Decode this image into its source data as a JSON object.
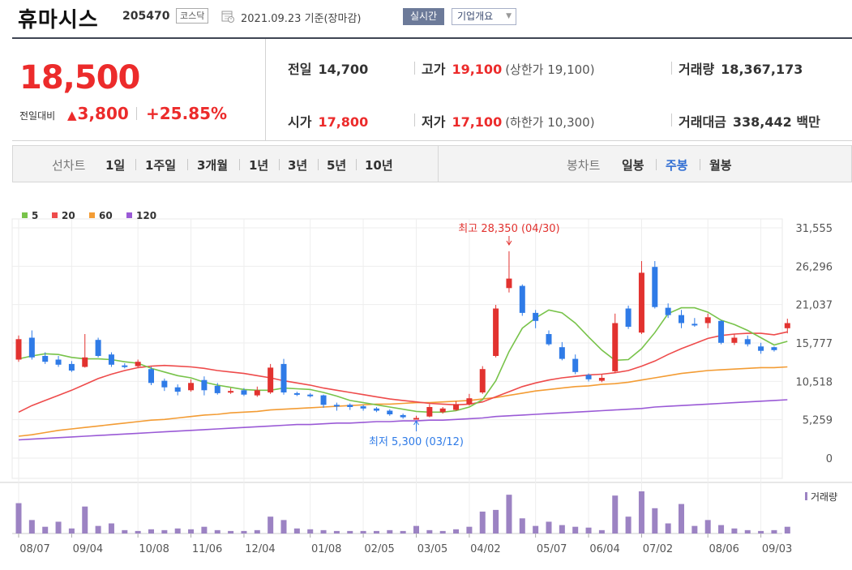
{
  "header": {
    "name": "휴마시스",
    "code": "205470",
    "market": "코스닥",
    "date": "2021.09.23 기준(장마감)",
    "realtime_label": "실시간",
    "overview_label": "기업개요"
  },
  "summary": {
    "price": "18,500",
    "change_label": "전일대비",
    "change_amount": "3,800",
    "change_rate": "+25.85%",
    "prev_close_label": "전일",
    "prev_close": "14,700",
    "open_label": "시가",
    "open": "17,800",
    "high_label": "고가",
    "high": "19,100",
    "upper_limit": "(상한가 19,100)",
    "low_label": "저가",
    "low": "17,100",
    "lower_limit": "(하한가 10,300)",
    "volume_label": "거래량",
    "volume": "18,367,173",
    "value_label": "거래대금",
    "value": "338,442",
    "value_unit": "백만"
  },
  "period_bar": {
    "line_label": "선차트",
    "line_periods": [
      "1일",
      "1주일",
      "3개월",
      "1년",
      "3년",
      "5년",
      "10년"
    ],
    "candle_label": "봉차트",
    "candle_periods": [
      "일봉",
      "주봉",
      "월봉"
    ],
    "active_candle": "주봉"
  },
  "colors": {
    "up": "#e2322f",
    "down": "#2f7be7",
    "ma5": "#78c34a",
    "ma20": "#ee4b4b",
    "ma60": "#f39c34",
    "ma120": "#9a5ad6",
    "volume": "#9c83c3"
  },
  "chart_data": {
    "type": "candlestick",
    "interval": "weekly",
    "legend": [
      "5",
      "20",
      "60",
      "120"
    ],
    "y_ticks": [
      "31,555",
      "26,296",
      "21,037",
      "15,777",
      "10,518",
      "5,259",
      "0"
    ],
    "x_labels": [
      "08/07",
      "09/04",
      "10/08",
      "11/06",
      "12/04",
      "01/08",
      "02/05",
      "03/05",
      "04/02",
      "05/07",
      "06/04",
      "07/02",
      "08/06",
      "09/03"
    ],
    "volume_label": "거래량",
    "annotation_high": "최고 28,350 (04/30)",
    "annotation_low": "최저 5,300 (03/12)",
    "ylim": [
      0,
      31555
    ],
    "candles": [
      [
        13500,
        16300,
        13200,
        16800
      ],
      [
        16500,
        13800,
        13500,
        17500
      ],
      [
        14000,
        13200,
        12900,
        14500
      ],
      [
        13500,
        12800,
        12500,
        14000
      ],
      [
        12900,
        12000,
        11800,
        13300
      ],
      [
        12500,
        13800,
        12400,
        17000
      ],
      [
        16200,
        14000,
        13800,
        16500
      ],
      [
        14200,
        12800,
        12500,
        14500
      ],
      [
        12700,
        12500,
        12300,
        13000
      ],
      [
        12600,
        13200,
        12400,
        13500
      ],
      [
        12200,
        10300,
        10000,
        12500
      ],
      [
        10600,
        9700,
        9200,
        10900
      ],
      [
        9700,
        9100,
        8600,
        10100
      ],
      [
        9300,
        10300,
        9100,
        10800
      ],
      [
        10700,
        9300,
        8600,
        11200
      ],
      [
        9900,
        8900,
        8700,
        10300
      ],
      [
        9100,
        9200,
        8800,
        9600
      ],
      [
        9300,
        8700,
        8500,
        9600
      ],
      [
        8600,
        9300,
        8400,
        9800
      ],
      [
        9000,
        12400,
        8800,
        12900
      ],
      [
        12900,
        9000,
        8700,
        13600
      ],
      [
        8900,
        8700,
        8500,
        9100
      ],
      [
        8700,
        8500,
        8300,
        8900
      ],
      [
        8600,
        7300,
        6900,
        8700
      ],
      [
        7300,
        7100,
        6500,
        7600
      ],
      [
        7300,
        7000,
        6600,
        7500
      ],
      [
        7100,
        6800,
        6500,
        7300
      ],
      [
        6800,
        6500,
        6300,
        7000
      ],
      [
        6500,
        6000,
        5800,
        6700
      ],
      [
        5900,
        5600,
        5400,
        6100
      ],
      [
        5500,
        5500,
        5300,
        5800
      ],
      [
        5700,
        7000,
        5600,
        7400
      ],
      [
        6300,
        6800,
        6100,
        7000
      ],
      [
        6600,
        7400,
        6500,
        7800
      ],
      [
        7400,
        8200,
        7200,
        8800
      ],
      [
        9000,
        12200,
        8800,
        12600
      ],
      [
        14000,
        20500,
        13800,
        21000
      ],
      [
        23300,
        24600,
        22700,
        28350
      ],
      [
        23600,
        19900,
        19500,
        23800
      ],
      [
        19900,
        18800,
        17800,
        20300
      ],
      [
        17000,
        15600,
        15400,
        17500
      ],
      [
        15200,
        13600,
        13400,
        15900
      ],
      [
        13600,
        11800,
        11500,
        14200
      ],
      [
        11400,
        10800,
        10500,
        11600
      ],
      [
        10600,
        11000,
        10400,
        11500
      ],
      [
        11900,
        18500,
        11700,
        19800
      ],
      [
        20500,
        18000,
        17700,
        20900
      ],
      [
        17200,
        25400,
        17000,
        27000
      ],
      [
        26200,
        20700,
        20500,
        27000
      ],
      [
        20600,
        19600,
        19200,
        21200
      ],
      [
        19600,
        18500,
        17800,
        20300
      ],
      [
        18400,
        18200,
        18000,
        19200
      ],
      [
        18500,
        19300,
        17800,
        19800
      ],
      [
        18800,
        15800,
        15600,
        18900
      ],
      [
        15800,
        16500,
        15500,
        17000
      ],
      [
        16300,
        15600,
        15300,
        16800
      ],
      [
        15300,
        14700,
        14300,
        15800
      ],
      [
        15200,
        14800,
        14600,
        15300
      ],
      [
        17800,
        18500,
        17100,
        19100
      ]
    ],
    "ma5": [
      13600,
      14000,
      14300,
      14200,
      13800,
      13600,
      13600,
      13500,
      13200,
      13000,
      12300,
      11800,
      11300,
      11000,
      10400,
      10000,
      9700,
      9400,
      9300,
      9300,
      9600,
      9500,
      9400,
      9000,
      8500,
      7900,
      7600,
      7300,
      7000,
      6700,
      6400,
      6300,
      6300,
      6500,
      7000,
      8000,
      10600,
      14600,
      17800,
      19200,
      20300,
      19900,
      18500,
      16600,
      14800,
      13400,
      13500,
      15000,
      17200,
      19800,
      20600,
      20600,
      20000,
      18900,
      18300,
      17500,
      16500,
      15500,
      16000
    ],
    "ma20": [
      6300,
      7200,
      7900,
      8600,
      9300,
      10100,
      10900,
      11500,
      12000,
      12400,
      12600,
      12700,
      12600,
      12500,
      12300,
      12000,
      11800,
      11600,
      11300,
      11000,
      10600,
      10300,
      10000,
      9600,
      9300,
      9000,
      8700,
      8400,
      8100,
      7900,
      7700,
      7500,
      7400,
      7300,
      7400,
      7700,
      8400,
      9100,
      9800,
      10300,
      10700,
      11000,
      11200,
      11400,
      11500,
      11700,
      12000,
      12600,
      13300,
      14200,
      15000,
      15700,
      16400,
      16800,
      17000,
      17100,
      17100,
      16900,
      17300
    ],
    "ma60": [
      3000,
      3200,
      3500,
      3800,
      4000,
      4200,
      4400,
      4600,
      4800,
      5000,
      5200,
      5300,
      5500,
      5700,
      5900,
      6000,
      6200,
      6300,
      6400,
      6600,
      6700,
      6800,
      6900,
      7000,
      7100,
      7200,
      7300,
      7400,
      7400,
      7500,
      7600,
      7600,
      7700,
      7800,
      7900,
      8100,
      8300,
      8600,
      8900,
      9200,
      9400,
      9600,
      9800,
      9900,
      10100,
      10200,
      10400,
      10700,
      11000,
      11300,
      11600,
      11800,
      12000,
      12100,
      12200,
      12300,
      12400,
      12400,
      12500
    ],
    "ma120": [
      2500,
      2600,
      2700,
      2800,
      2900,
      3000,
      3100,
      3200,
      3300,
      3400,
      3500,
      3600,
      3700,
      3800,
      3900,
      4000,
      4100,
      4200,
      4300,
      4400,
      4500,
      4600,
      4600,
      4700,
      4800,
      4800,
      4900,
      5000,
      5000,
      5100,
      5100,
      5200,
      5200,
      5300,
      5400,
      5500,
      5700,
      5800,
      5900,
      6000,
      6100,
      6200,
      6300,
      6400,
      6500,
      6600,
      6700,
      6800,
      7000,
      7100,
      7200,
      7300,
      7400,
      7500,
      7600,
      7700,
      7800,
      7900,
      8000
    ],
    "volume": [
      36,
      16,
      8,
      14,
      6,
      32,
      9,
      12,
      4,
      3,
      5,
      4,
      6,
      5,
      8,
      4,
      3,
      3,
      4,
      20,
      16,
      6,
      5,
      4,
      3,
      3,
      3,
      3,
      4,
      3,
      9,
      4,
      3,
      5,
      8,
      26,
      28,
      46,
      18,
      9,
      14,
      10,
      8,
      7,
      4,
      45,
      20,
      50,
      30,
      12,
      35,
      9,
      16,
      10,
      6,
      4,
      3,
      4,
      8
    ]
  }
}
